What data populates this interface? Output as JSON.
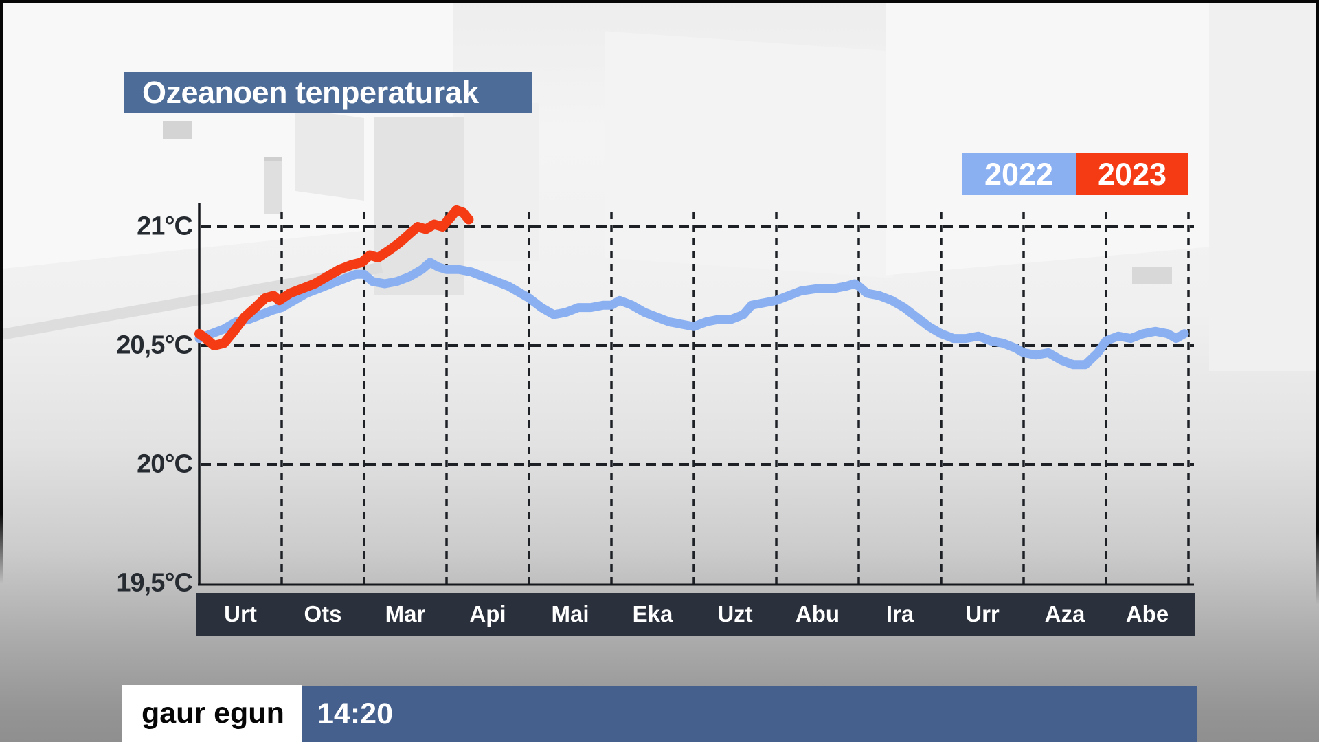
{
  "title": {
    "text": "Ozeanoen tenperaturak"
  },
  "legend": [
    {
      "label": "2022",
      "color": "#8ab0f2"
    },
    {
      "label": "2023",
      "color": "#f43b14"
    }
  ],
  "ticker": {
    "brand": "gaur egun",
    "time": "14:20"
  },
  "colors": {
    "title_bg": "#4d6c98",
    "month_bar_bg": "#2b313c",
    "ticker_bar_bg": "#45608d",
    "ticker_brand_bg": "#ffffff",
    "axis": "#15181c",
    "grid": "#1d2126",
    "tick_text": "#262b31"
  },
  "chart_data": {
    "type": "line",
    "title": "Ozeanoen tenperaturak",
    "x_unit": "month_index",
    "x_axis": {
      "categories": [
        "Urt",
        "Ots",
        "Mar",
        "Api",
        "Mai",
        "Eka",
        "Uzt",
        "Abu",
        "Ira",
        "Urr",
        "Aza",
        "Abe"
      ]
    },
    "y_axis": {
      "unit": "°C",
      "tick_labels": [
        "21°C",
        "20,5°C",
        "20°C",
        "19,5°C"
      ],
      "tick_values": [
        21,
        20.5,
        20,
        19.5
      ],
      "grid_values": [
        21,
        20.5,
        20
      ],
      "ylim": [
        19.5,
        21.15
      ]
    },
    "grid": "dashed",
    "legend_position": "top-right",
    "series": [
      {
        "name": "2022",
        "color": "#8ab0f2",
        "stroke_width": 13,
        "points": [
          [
            0,
            20.53
          ],
          [
            0.15,
            20.55
          ],
          [
            0.3,
            20.57
          ],
          [
            0.45,
            20.6
          ],
          [
            0.6,
            20.61
          ],
          [
            0.75,
            20.63
          ],
          [
            0.9,
            20.65
          ],
          [
            1,
            20.66
          ],
          [
            1.15,
            20.69
          ],
          [
            1.3,
            20.72
          ],
          [
            1.45,
            20.74
          ],
          [
            1.6,
            20.76
          ],
          [
            1.75,
            20.78
          ],
          [
            1.9,
            20.8
          ],
          [
            2,
            20.8
          ],
          [
            2.1,
            20.77
          ],
          [
            2.25,
            20.76
          ],
          [
            2.4,
            20.77
          ],
          [
            2.55,
            20.79
          ],
          [
            2.7,
            20.82
          ],
          [
            2.8,
            20.85
          ],
          [
            2.9,
            20.83
          ],
          [
            3,
            20.82
          ],
          [
            3.15,
            20.82
          ],
          [
            3.3,
            20.81
          ],
          [
            3.45,
            20.79
          ],
          [
            3.6,
            20.77
          ],
          [
            3.75,
            20.75
          ],
          [
            3.9,
            20.72
          ],
          [
            4,
            20.7
          ],
          [
            4.15,
            20.66
          ],
          [
            4.3,
            20.63
          ],
          [
            4.45,
            20.64
          ],
          [
            4.6,
            20.66
          ],
          [
            4.75,
            20.66
          ],
          [
            4.9,
            20.67
          ],
          [
            5,
            20.67
          ],
          [
            5.1,
            20.69
          ],
          [
            5.25,
            20.67
          ],
          [
            5.4,
            20.64
          ],
          [
            5.55,
            20.62
          ],
          [
            5.7,
            20.6
          ],
          [
            5.85,
            20.59
          ],
          [
            6,
            20.58
          ],
          [
            6.15,
            20.6
          ],
          [
            6.3,
            20.61
          ],
          [
            6.45,
            20.61
          ],
          [
            6.6,
            20.63
          ],
          [
            6.7,
            20.67
          ],
          [
            6.85,
            20.68
          ],
          [
            7,
            20.69
          ],
          [
            7.15,
            20.71
          ],
          [
            7.3,
            20.73
          ],
          [
            7.5,
            20.74
          ],
          [
            7.7,
            20.74
          ],
          [
            7.85,
            20.75
          ],
          [
            7.95,
            20.76
          ],
          [
            8,
            20.75
          ],
          [
            8.1,
            20.72
          ],
          [
            8.25,
            20.71
          ],
          [
            8.4,
            20.69
          ],
          [
            8.55,
            20.66
          ],
          [
            8.7,
            20.62
          ],
          [
            8.85,
            20.58
          ],
          [
            9,
            20.55
          ],
          [
            9.15,
            20.53
          ],
          [
            9.3,
            20.53
          ],
          [
            9.45,
            20.54
          ],
          [
            9.6,
            20.52
          ],
          [
            9.75,
            20.51
          ],
          [
            9.9,
            20.49
          ],
          [
            10,
            20.47
          ],
          [
            10.15,
            20.46
          ],
          [
            10.3,
            20.47
          ],
          [
            10.45,
            20.44
          ],
          [
            10.6,
            20.42
          ],
          [
            10.75,
            20.42
          ],
          [
            10.9,
            20.47
          ],
          [
            11,
            20.52
          ],
          [
            11.15,
            20.54
          ],
          [
            11.3,
            20.53
          ],
          [
            11.45,
            20.55
          ],
          [
            11.6,
            20.56
          ],
          [
            11.75,
            20.55
          ],
          [
            11.85,
            20.53
          ],
          [
            11.95,
            20.55
          ]
        ]
      },
      {
        "name": "2023",
        "color": "#f43b14",
        "stroke_width": 14,
        "points": [
          [
            0,
            20.55
          ],
          [
            0.08,
            20.53
          ],
          [
            0.18,
            20.5
          ],
          [
            0.3,
            20.51
          ],
          [
            0.42,
            20.56
          ],
          [
            0.55,
            20.62
          ],
          [
            0.68,
            20.66
          ],
          [
            0.8,
            20.7
          ],
          [
            0.9,
            20.71
          ],
          [
            0.97,
            20.69
          ],
          [
            1.1,
            20.72
          ],
          [
            1.25,
            20.74
          ],
          [
            1.4,
            20.76
          ],
          [
            1.55,
            20.79
          ],
          [
            1.7,
            20.82
          ],
          [
            1.85,
            20.84
          ],
          [
            1.97,
            20.85
          ],
          [
            2.07,
            20.88
          ],
          [
            2.17,
            20.87
          ],
          [
            2.3,
            20.9
          ],
          [
            2.42,
            20.93
          ],
          [
            2.55,
            20.97
          ],
          [
            2.65,
            21
          ],
          [
            2.75,
            20.99
          ],
          [
            2.85,
            21.01
          ],
          [
            2.95,
            21
          ],
          [
            3.05,
            21.04
          ],
          [
            3.12,
            21.07
          ],
          [
            3.2,
            21.06
          ],
          [
            3.27,
            21.03
          ]
        ]
      }
    ]
  }
}
